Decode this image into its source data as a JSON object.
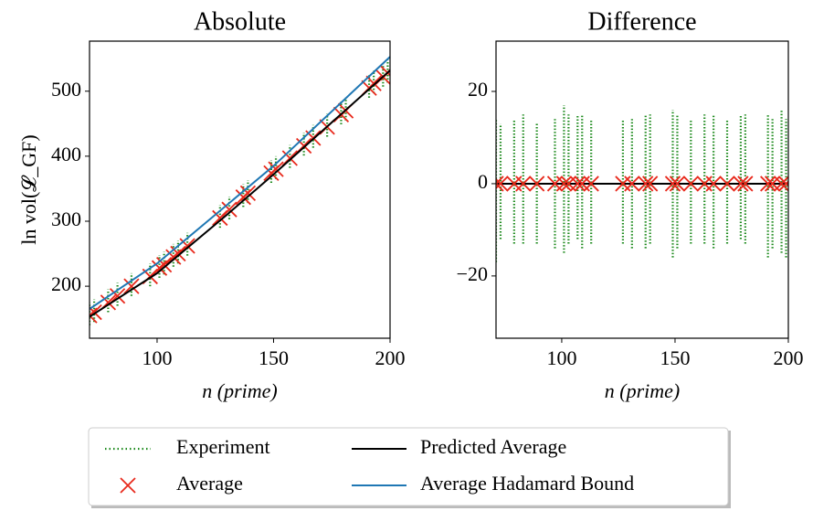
{
  "chart_data": [
    {
      "type": "scatter",
      "title": "Absolute",
      "xlabel": "n (prime)",
      "ylabel": "ln vol(𝓛_GF)",
      "xlim": [
        71,
        200
      ],
      "ylim": [
        120,
        577
      ],
      "xticks": [
        100,
        150,
        200
      ],
      "yticks": [
        200,
        300,
        400,
        500
      ],
      "series": [
        {
          "name": "Experiment",
          "style": "range",
          "color": "#1c8a1c",
          "x": [
            71,
            73,
            79,
            83,
            89,
            97,
            101,
            103,
            107,
            109,
            113,
            127,
            131,
            137,
            139,
            149,
            151,
            157,
            163,
            167,
            173,
            179,
            181,
            191,
            193,
            197,
            199
          ],
          "low": [
            140,
            145,
            160,
            170,
            185,
            200,
            213,
            218,
            230,
            235,
            247,
            290,
            303,
            322,
            328,
            359,
            365,
            382,
            401,
            413,
            430,
            449,
            455,
            490,
            497,
            507,
            513
          ],
          "high": [
            175,
            180,
            195,
            205,
            220,
            235,
            248,
            253,
            265,
            270,
            282,
            325,
            338,
            357,
            363,
            394,
            400,
            417,
            436,
            448,
            465,
            484,
            490,
            525,
            532,
            542,
            548
          ]
        },
        {
          "name": "Average",
          "style": "marker",
          "color": "#e8291c",
          "x": [
            71,
            73,
            79,
            83,
            89,
            97,
            101,
            103,
            107,
            109,
            113,
            127,
            131,
            137,
            139,
            149,
            151,
            157,
            163,
            167,
            173,
            179,
            181,
            191,
            193,
            197,
            199
          ],
          "values": [
            155,
            160,
            175,
            185,
            200,
            215,
            228,
            233,
            245,
            250,
            262,
            305,
            318,
            337,
            343,
            374,
            380,
            397,
            416,
            428,
            445,
            464,
            470,
            505,
            512,
            522,
            528
          ]
        },
        {
          "name": "Predicted Average",
          "style": "line",
          "color": "#000000",
          "x": [
            71,
            100,
            130,
            150,
            175,
            200
          ],
          "values": [
            153,
            220,
            310,
            372,
            452,
            532
          ]
        },
        {
          "name": "Average Hadamard Bound",
          "style": "line",
          "color": "#1f77b4",
          "x": [
            71,
            100,
            150,
            200
          ],
          "values": [
            165,
            235,
            385,
            553
          ]
        }
      ]
    },
    {
      "type": "scatter",
      "title": "Difference",
      "xlabel": "n (prime)",
      "xlim": [
        71,
        200
      ],
      "ylim": [
        -33.5,
        30.9
      ],
      "xticks": [
        100,
        150,
        200
      ],
      "yticks": [
        {
          "value": -20,
          "label": "−20"
        },
        0,
        20
      ],
      "series": [
        {
          "style": "range",
          "color": "#1c8a1c",
          "x": [
            71,
            73,
            79,
            83,
            89,
            97,
            101,
            103,
            107,
            109,
            113,
            127,
            131,
            137,
            139,
            149,
            151,
            157,
            163,
            167,
            173,
            179,
            181,
            191,
            193,
            197,
            199
          ],
          "low": [
            -17,
            -12,
            -13,
            -13,
            -13,
            -14,
            -15,
            -13,
            -12,
            -14,
            -13,
            -13,
            -14,
            -14,
            -13,
            -16,
            -14,
            -13,
            -13,
            -14,
            -13,
            -12,
            -13,
            -16,
            -14,
            -15,
            -16
          ],
          "high": [
            14,
            13,
            14,
            15,
            13,
            14,
            17,
            15,
            15,
            15,
            14,
            14,
            14,
            15,
            15,
            16,
            15,
            14,
            15,
            15,
            14,
            15,
            15,
            15,
            14,
            16,
            14
          ]
        },
        {
          "style": "line",
          "color": "#000000",
          "x": [
            71,
            200
          ],
          "values": [
            0,
            0
          ]
        },
        {
          "style": "marker",
          "color": "#e8291c",
          "x": [
            71,
            73,
            79,
            83,
            89,
            97,
            101,
            103,
            107,
            109,
            113,
            127,
            131,
            137,
            139,
            149,
            151,
            157,
            163,
            167,
            173,
            179,
            181,
            191,
            193,
            197,
            199
          ],
          "values": [
            0,
            0,
            0,
            0,
            0,
            0,
            0,
            0,
            0,
            0,
            0,
            0,
            0,
            0,
            0,
            0,
            0,
            0,
            0,
            0,
            0,
            0,
            0,
            0,
            0,
            0,
            0
          ]
        }
      ]
    }
  ]
}
